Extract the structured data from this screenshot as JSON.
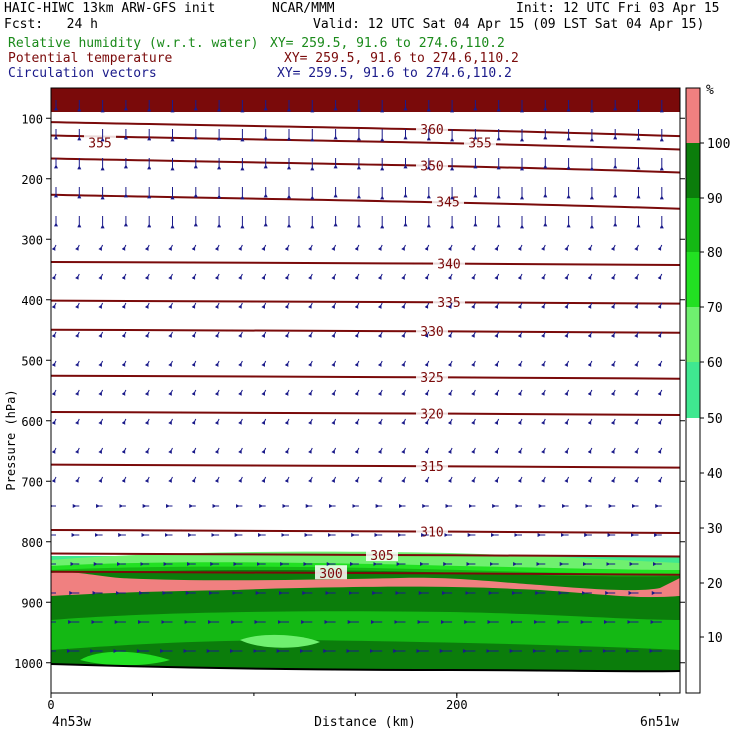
{
  "header": {
    "left_line1": "HAIC-HIWC 13km ARW-GFS init",
    "center_line1": "NCAR/MMM",
    "right_line1": "Init: 12 UTC Fri 03 Apr 15",
    "left_line2": "Fcst:   24 h",
    "right_line2": "Valid: 12 UTC Sat 04 Apr 15 (09 LST Sat 04 Apr 15)",
    "field1": "Relative humidity (w.r.t. water)",
    "field2": "Potential temperature",
    "field3": "Circulation vectors",
    "xy1": "XY= 259.5, 91.6 to 274.6,110.2",
    "xy2": "XY= 259.5, 91.6 to 274.6,110.2",
    "xy3": "XY= 259.5, 91.6 to 274.6,110.2"
  },
  "colors": {
    "theta": "#7a0a0a",
    "vectors": "#1a1a8a",
    "rh_legend": "#1a8a1a",
    "rh_50_60": "#3fe890",
    "rh_60_70": "#6ff06f",
    "rh_70_80": "#22e022",
    "rh_80_90": "#14b814",
    "rh_90_100": "#0b7d0b",
    "rh_100_plus": "#f08080",
    "above_top": "#7a0a0a"
  },
  "chart_data": {
    "type": "contour",
    "xlabel": "Distance (km)",
    "ylabel": "Pressure (hPa)",
    "x_start_label": "4n53w",
    "x_end_label": "6n51w",
    "x_ticks": [
      "0",
      "200"
    ],
    "x_range": [
      0,
      310
    ],
    "y_ticks": [
      "100",
      "200",
      "300",
      "400",
      "500",
      "600",
      "700",
      "800",
      "900",
      "1000"
    ],
    "y_range": [
      1050,
      50
    ],
    "theta_contours": [
      {
        "label": "360",
        "p": 118
      },
      {
        "label": "355",
        "p": 140
      },
      {
        "label": "350",
        "p": 178
      },
      {
        "label": "345",
        "p": 238
      },
      {
        "label": "340",
        "p": 340
      },
      {
        "label": "335",
        "p": 404
      },
      {
        "label": "330",
        "p": 452
      },
      {
        "label": "325",
        "p": 528
      },
      {
        "label": "320",
        "p": 588
      },
      {
        "label": "315",
        "p": 675
      },
      {
        "label": "310",
        "p": 783
      },
      {
        "label": "305",
        "p": 822
      },
      {
        "label": "300",
        "p": 852
      }
    ],
    "rh_colorbar": {
      "unit": "%",
      "ticks": [
        "10",
        "20",
        "30",
        "40",
        "50",
        "60",
        "70",
        "80",
        "90",
        "100"
      ]
    },
    "grid": false
  }
}
